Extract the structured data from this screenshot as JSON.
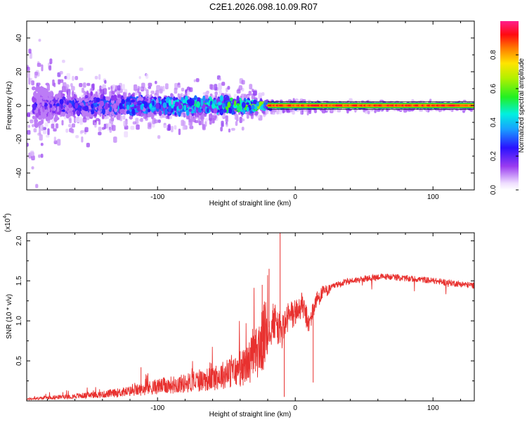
{
  "title": "C2E1.2026.098.10.09.R07",
  "colors": {
    "snr_line": "#e8312f",
    "axis": "#000000"
  },
  "chart_data": [
    {
      "type": "heatmap",
      "name": "spectrogram",
      "xlabel": "Height of straight line (km)",
      "ylabel": "Frequency (Hz)",
      "xlim": [
        -195,
        130
      ],
      "ylim": [
        -50,
        50
      ],
      "xticks": [
        -100,
        0,
        100
      ],
      "xtick_labels": [
        "-100",
        "0",
        "100"
      ],
      "yticks": [
        -40,
        -20,
        0,
        20,
        40
      ],
      "ytick_labels": [
        "-40",
        "-20",
        "0",
        "20",
        "40"
      ],
      "colorbar": {
        "label": "Normalized spectral amplitude",
        "range": [
          0,
          1
        ],
        "ticks": [
          0.0,
          0.2,
          0.4,
          0.6,
          0.8
        ],
        "tick_labels": [
          "0.0",
          "0.2",
          "0.4",
          "0.6",
          "0.8"
        ]
      },
      "description_points": {
        "spread_hz_by_height": [
          [
            -195,
            50
          ],
          [
            -170,
            22
          ],
          [
            -130,
            18
          ],
          [
            -80,
            15
          ],
          [
            -40,
            14
          ],
          [
            -20,
            4
          ],
          [
            0,
            3
          ],
          [
            60,
            2
          ],
          [
            130,
            2
          ]
        ],
        "line_amplitude_by_height": [
          [
            -195,
            0.2
          ],
          [
            -120,
            0.35
          ],
          [
            -60,
            0.45
          ],
          [
            -30,
            0.55
          ],
          [
            -20,
            0.75
          ],
          [
            0,
            0.9
          ],
          [
            40,
            0.95
          ],
          [
            130,
            0.95
          ]
        ]
      }
    },
    {
      "type": "line",
      "name": "snr",
      "xlabel": "Height of straight line (km)",
      "ylabel": "SNR (10 * v/v)",
      "y_multiplier_label": "(x10",
      "y_multiplier_exp": "4",
      "xlim": [
        -195,
        130
      ],
      "ylim": [
        0,
        2.1
      ],
      "xticks": [
        -100,
        0,
        100
      ],
      "xtick_labels": [
        "-100",
        "0",
        "100"
      ],
      "yticks": [
        0.5,
        1.0,
        1.5,
        2.0
      ],
      "ytick_labels": [
        "0.5",
        "1.0",
        "1.5",
        "2.0"
      ],
      "series": [
        {
          "name": "SNR",
          "x": [
            -195,
            -180,
            -160,
            -140,
            -120,
            -100,
            -80,
            -60,
            -50,
            -40,
            -30,
            -25,
            -20,
            -15,
            -10,
            -5,
            0,
            5,
            10,
            15,
            20,
            30,
            40,
            50,
            60,
            70,
            80,
            90,
            100,
            110,
            120,
            130
          ],
          "y": [
            0.02,
            0.04,
            0.06,
            0.08,
            0.12,
            0.18,
            0.22,
            0.28,
            0.34,
            0.38,
            0.55,
            0.7,
            0.9,
            1.0,
            0.85,
            1.05,
            1.1,
            1.2,
            0.95,
            1.25,
            1.35,
            1.45,
            1.5,
            1.52,
            1.55,
            1.55,
            1.53,
            1.52,
            1.5,
            1.48,
            1.46,
            1.44
          ]
        }
      ],
      "spikes": [
        [
          -11,
          2.1
        ],
        [
          -19,
          1.65
        ],
        [
          -24,
          1.45
        ],
        [
          -8,
          0.05
        ],
        [
          13,
          0.23
        ],
        [
          -31,
          0.9
        ],
        [
          -40,
          0.62
        ],
        [
          -62,
          0.48
        ],
        [
          -112,
          0.42
        ]
      ]
    }
  ]
}
